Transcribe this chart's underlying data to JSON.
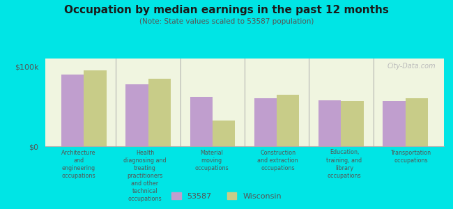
{
  "title": "Occupation by median earnings in the past 12 months",
  "subtitle": "(Note: State values scaled to 53587 population)",
  "background_color": "#00e5e5",
  "plot_bg_color": "#f0f5e0",
  "bar_color_53587": "#c09ece",
  "bar_color_wisconsin": "#c8cc88",
  "categories": [
    "Architecture\nand\nengineering\noccupations",
    "Health\ndiagnosing and\ntreating\npractitioners\nand other\ntechnical\noccupations",
    "Material\nmoving\noccupations",
    "Construction\nand extraction\noccupations",
    "Education,\ntraining, and\nlibrary\noccupations",
    "Transportation\noccupations"
  ],
  "values_53587": [
    90000,
    78000,
    62000,
    60000,
    58000,
    57000
  ],
  "values_wisconsin": [
    95000,
    85000,
    32000,
    65000,
    57000,
    60000
  ],
  "yticks": [
    0,
    100000
  ],
  "ytick_labels": [
    "$0",
    "$100k"
  ],
  "legend_label_53587": "53587",
  "legend_label_wisconsin": "Wisconsin",
  "ylabel": "",
  "watermark": "City-Data.com"
}
